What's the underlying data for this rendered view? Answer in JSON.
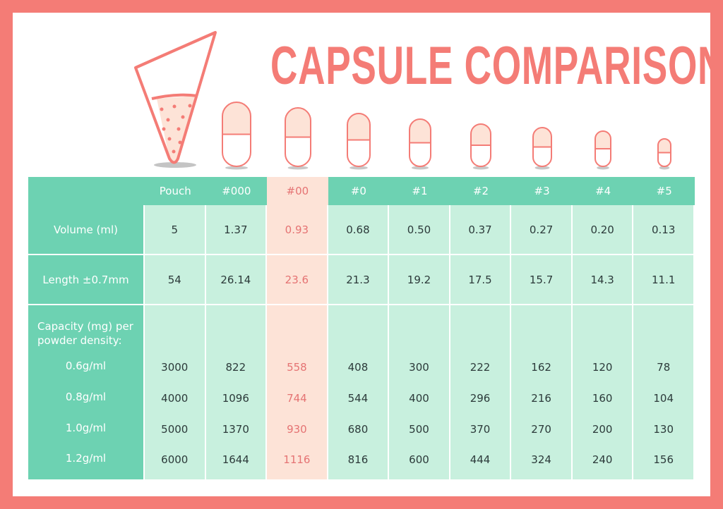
{
  "title": "CAPSULE COMPARISON",
  "colors": {
    "frame": "#f47c76",
    "header": "#6dd2b2",
    "cell": "#c8f0de",
    "highlight": "#fde3d7",
    "highlight_text": "#e57373"
  },
  "icons": [
    "pouch-cone-icon",
    "capsule-icon"
  ],
  "columns": [
    "Pouch",
    "#000",
    "#00",
    "#0",
    "#1",
    "#2",
    "#3",
    "#4",
    "#5"
  ],
  "highlight_column": "#00",
  "rows": {
    "volume": {
      "label": "Volume (ml)",
      "values": [
        "5",
        "1.37",
        "0.93",
        "0.68",
        "0.50",
        "0.37",
        "0.27",
        "0.20",
        "0.13"
      ]
    },
    "length": {
      "label": "Length ±0.7mm",
      "values": [
        "54",
        "26.14",
        "23.6",
        "21.3",
        "19.2",
        "17.5",
        "15.7",
        "14.3",
        "11.1"
      ]
    }
  },
  "capacity": {
    "label_line1": "Capacity (mg) per",
    "label_line2": "powder density:",
    "densities": [
      {
        "label": "0.6g/ml",
        "values": [
          "3000",
          "822",
          "558",
          "408",
          "300",
          "222",
          "162",
          "120",
          "78"
        ]
      },
      {
        "label": "0.8g/ml",
        "values": [
          "4000",
          "1096",
          "744",
          "544",
          "400",
          "296",
          "216",
          "160",
          "104"
        ]
      },
      {
        "label": "1.0g/ml",
        "values": [
          "5000",
          "1370",
          "930",
          "680",
          "500",
          "370",
          "270",
          "200",
          "130"
        ]
      },
      {
        "label": "1.2g/ml",
        "values": [
          "6000",
          "1644",
          "1116",
          "816",
          "600",
          "444",
          "324",
          "240",
          "156"
        ]
      }
    ]
  }
}
